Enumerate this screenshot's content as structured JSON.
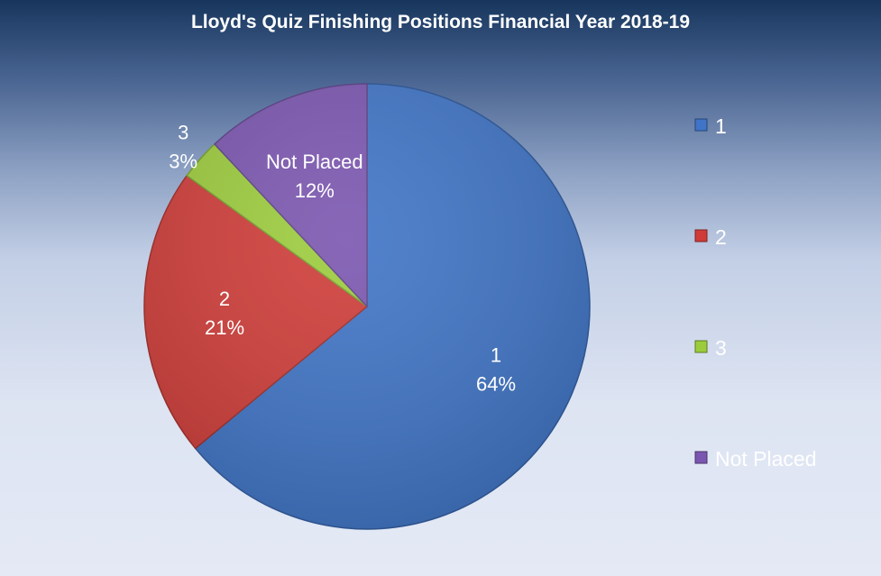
{
  "chart_data": {
    "type": "pie",
    "title": "Lloyd's Quiz Finishing Positions Financial Year 2018-19",
    "categories": [
      "1",
      "2",
      "3",
      "Not Placed"
    ],
    "values": [
      64,
      21,
      3,
      12
    ],
    "data_labels": [
      "64%",
      "21%",
      "3%",
      "12%"
    ],
    "colors": [
      "#3f74c6",
      "#cf3c38",
      "#9ccc3c",
      "#7b56b0"
    ],
    "legend": {
      "position": "right",
      "entries": [
        "1",
        "2",
        "3",
        "Not Placed"
      ]
    }
  }
}
